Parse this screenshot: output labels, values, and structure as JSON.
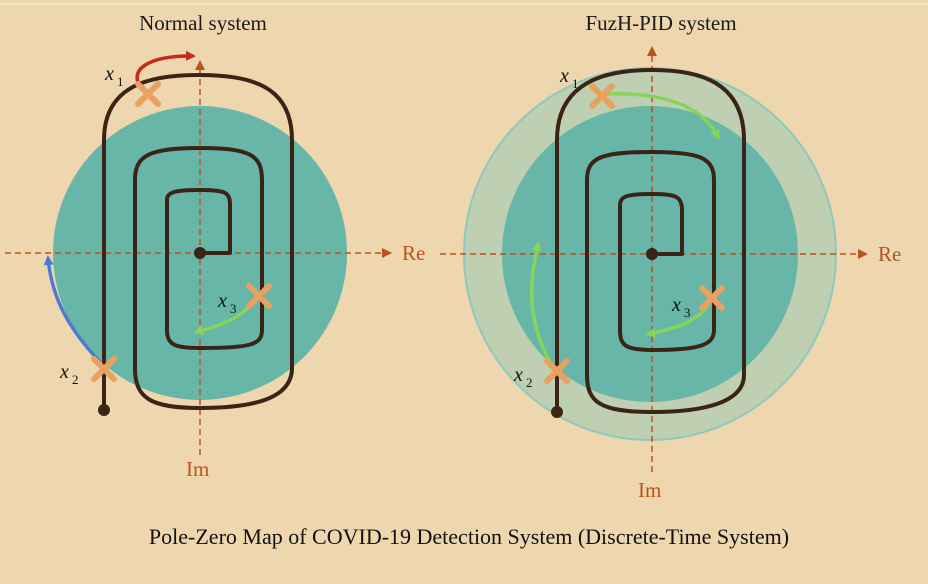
{
  "colors": {
    "background": "#eed6ae",
    "unit_disk": "#67b6a8",
    "outer_ring": "#bfcfb1",
    "ring_edge": "#8ec9bd",
    "trajectory": "#3b2416",
    "axis": "#b8541e",
    "pole_marker": "#e6a25e",
    "arrow_red": "#c7281c",
    "arrow_blue": "#4b7bd3",
    "arrow_green": "#86d45a"
  },
  "panels": {
    "left": {
      "title": "Normal system",
      "axis_real_label": "Re",
      "axis_imag_label": "Im",
      "poles": [
        {
          "label": "x",
          "sub": "1"
        },
        {
          "label": "x",
          "sub": "2"
        },
        {
          "label": "x",
          "sub": "3"
        }
      ]
    },
    "right": {
      "title": "FuzH-PID system",
      "axis_real_label": "Re",
      "axis_imag_label": "Im",
      "poles": [
        {
          "label": "x",
          "sub": "1"
        },
        {
          "label": "x",
          "sub": "2"
        },
        {
          "label": "x",
          "sub": "3"
        }
      ]
    }
  },
  "caption": "Pole-Zero Map of COVID-19 Detection System (Discrete-Time System)"
}
